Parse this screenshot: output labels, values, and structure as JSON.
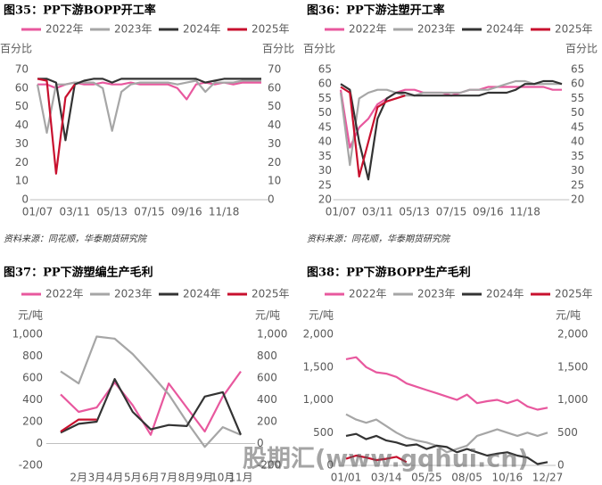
{
  "chart_data": [
    {
      "type": "line",
      "title": "图35：PP下游BOPP开工率",
      "y_label": "百分比",
      "y2_label": "百分比",
      "source": "资料来源：同花顺，华泰期货研究院",
      "categories": [
        "01/07",
        null,
        null,
        null,
        "03/11",
        null,
        null,
        null,
        "05/13",
        null,
        null,
        null,
        "07/15",
        null,
        null,
        null,
        "09/16",
        null,
        null,
        null,
        "11/18",
        null,
        null,
        null,
        null
      ],
      "ylim": [
        0,
        70
      ],
      "yticks": [
        0,
        10,
        20,
        30,
        40,
        50,
        60,
        70
      ],
      "y2lim": [
        0,
        70
      ],
      "y2ticks": [
        0,
        10,
        20,
        30,
        40,
        50,
        60,
        70
      ],
      "grid": false,
      "series": [
        {
          "name": "2022年",
          "color": "#e8589e",
          "values": [
            62,
            62,
            60,
            62,
            63,
            62,
            62,
            63,
            62,
            62,
            63,
            62,
            62,
            62,
            62,
            60,
            54,
            62,
            63,
            62,
            63,
            62,
            63,
            63,
            63
          ]
        },
        {
          "name": "2023年",
          "color": "#a6a6a6",
          "values": [
            62,
            36,
            62,
            62,
            63,
            63,
            63,
            60,
            37,
            58,
            62,
            63,
            63,
            63,
            63,
            62,
            63,
            64,
            58,
            63,
            63,
            63,
            64,
            64,
            64
          ]
        },
        {
          "name": "2024年",
          "color": "#333333",
          "values": [
            65,
            65,
            63,
            32,
            62,
            64,
            65,
            65,
            63,
            65,
            65,
            65,
            65,
            65,
            65,
            65,
            65,
            65,
            63,
            64,
            65,
            65,
            65,
            65,
            65
          ]
        },
        {
          "name": "2025年",
          "color": "#c8102e",
          "values": [
            65,
            64,
            14,
            55,
            62,
            null,
            null,
            null,
            null,
            null,
            null,
            null,
            null,
            null,
            null,
            null,
            null,
            null,
            null,
            null,
            null,
            null,
            null,
            null,
            null
          ]
        }
      ]
    },
    {
      "type": "line",
      "title": "图36：PP下游注塑开工率",
      "y_label": "百分比",
      "y2_label": "百分比",
      "source": "资料来源：同花顺，华泰期货研究院",
      "categories": [
        "01/07",
        null,
        null,
        null,
        "03/11",
        null,
        null,
        null,
        "05/13",
        null,
        null,
        null,
        "07/15",
        null,
        null,
        null,
        "09/16",
        null,
        null,
        null,
        "11/18",
        null,
        null,
        null,
        null
      ],
      "ylim": [
        20,
        65
      ],
      "yticks": [
        20,
        25,
        30,
        35,
        40,
        45,
        50,
        55,
        60,
        65
      ],
      "y2lim": [
        20,
        65
      ],
      "y2ticks": [
        20,
        25,
        30,
        35,
        40,
        45,
        50,
        55,
        60,
        65
      ],
      "grid": false,
      "series": [
        {
          "name": "2022年",
          "color": "#e8589e",
          "values": [
            58,
            38,
            45,
            48,
            53,
            55,
            57,
            58,
            58,
            57,
            57,
            57,
            56,
            57,
            58,
            58,
            59,
            59,
            59,
            59,
            59,
            59,
            59,
            58,
            58
          ]
        },
        {
          "name": "2023年",
          "color": "#a6a6a6",
          "values": [
            57,
            32,
            55,
            57,
            58,
            58,
            57,
            56,
            56,
            57,
            57,
            57,
            57,
            57,
            58,
            58,
            58,
            59,
            60,
            61,
            61,
            60,
            60,
            60,
            60
          ]
        },
        {
          "name": "2024年",
          "color": "#333333",
          "values": [
            60,
            58,
            40,
            27,
            48,
            55,
            57,
            57,
            56,
            56,
            56,
            56,
            56,
            56,
            56,
            56,
            57,
            57,
            57,
            58,
            60,
            60,
            61,
            61,
            60
          ]
        },
        {
          "name": "2025年",
          "color": "#c8102e",
          "values": [
            59,
            57,
            28,
            40,
            52,
            54,
            55,
            56,
            null,
            null,
            null,
            null,
            null,
            null,
            null,
            null,
            null,
            null,
            null,
            null,
            null,
            null,
            null,
            null,
            null
          ]
        }
      ]
    },
    {
      "type": "line",
      "title": "图37：PP下游塑编生产毛利",
      "y_label": "元/吨",
      "y2_label": "元/吨",
      "categories": [
        null,
        "2月",
        "3月",
        "4月",
        "5月",
        "6月",
        "7月",
        "8月",
        "9月",
        "10月",
        "11月"
      ],
      "ylim": [
        -200,
        1000
      ],
      "yticks": [
        -200,
        0,
        200,
        400,
        600,
        800,
        {
          "value": 1000,
          "label": "1,000"
        }
      ],
      "y2lim": [
        -200,
        1000
      ],
      "y2ticks": [
        -200,
        0,
        200,
        400,
        600,
        800,
        {
          "value": 1000,
          "label": "1,000"
        }
      ],
      "grid": false,
      "series": [
        {
          "name": "2022年",
          "color": "#e8589e",
          "values": [
            450,
            290,
            330,
            560,
            350,
            80,
            550,
            330,
            110,
            430,
            660
          ]
        },
        {
          "name": "2023年",
          "color": "#a6a6a6",
          "values": [
            660,
            550,
            980,
            960,
            820,
            640,
            450,
            200,
            -30,
            150,
            80
          ]
        },
        {
          "name": "2024年",
          "color": "#333333",
          "values": [
            100,
            180,
            200,
            590,
            290,
            130,
            170,
            160,
            430,
            470,
            80
          ]
        },
        {
          "name": "2025年",
          "color": "#c8102e",
          "values": [
            110,
            220,
            220,
            null,
            null,
            null,
            null,
            null,
            null,
            null,
            null
          ]
        }
      ]
    },
    {
      "type": "line",
      "title": "图38：PP下游BOPP生产毛利",
      "y_label": "元/吨",
      "y2_label": "元/吨",
      "categories": [
        "01/01",
        null,
        null,
        null,
        "03/14",
        null,
        null,
        null,
        "05/25",
        null,
        null,
        null,
        "08/05",
        null,
        null,
        null,
        "10/16",
        null,
        null,
        null,
        "12/27"
      ],
      "ylim": [
        0,
        2000
      ],
      "yticks": [
        0,
        500,
        {
          "value": 1000,
          "label": "1,000"
        },
        {
          "value": 1500,
          "label": "1,500"
        },
        {
          "value": 2000,
          "label": "2,000"
        }
      ],
      "y2lim": [
        0,
        2000
      ],
      "y2ticks": [
        0,
        500,
        {
          "value": 1000,
          "label": "1,000"
        },
        {
          "value": 1500,
          "label": "1,500"
        },
        {
          "value": 2000,
          "label": "2,000"
        }
      ],
      "grid": false,
      "series": [
        {
          "name": "2022年",
          "color": "#e8589e",
          "values": [
            1620,
            1650,
            1500,
            1420,
            1400,
            1350,
            1250,
            1200,
            1150,
            1100,
            1050,
            1000,
            1080,
            950,
            980,
            1000,
            950,
            1000,
            900,
            850,
            880
          ]
        },
        {
          "name": "2023年",
          "color": "#a6a6a6",
          "values": [
            780,
            700,
            650,
            700,
            600,
            500,
            420,
            380,
            350,
            300,
            200,
            250,
            300,
            450,
            500,
            550,
            500,
            450,
            500,
            450,
            500
          ]
        },
        {
          "name": "2024年",
          "color": "#333333",
          "values": [
            450,
            480,
            400,
            450,
            380,
            350,
            300,
            320,
            250,
            300,
            280,
            200,
            250,
            200,
            150,
            180,
            200,
            150,
            120,
            20,
            50
          ]
        },
        {
          "name": "2025年",
          "color": "#c8102e",
          "values": [
            100,
            150,
            120,
            80,
            100,
            130,
            50,
            null,
            null,
            null,
            null,
            null,
            null,
            null,
            null,
            null,
            null,
            null,
            null,
            null,
            null
          ]
        }
      ]
    }
  ],
  "watermark": "股期汇(www.gqhui.cn)"
}
